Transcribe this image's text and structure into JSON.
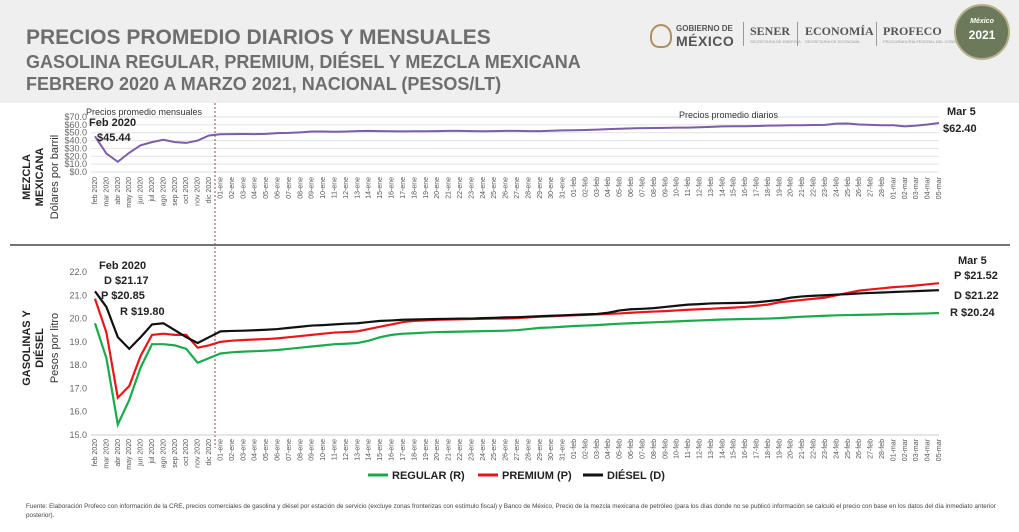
{
  "header": {
    "title_line1": "PRECIOS PROMEDIO DIARIOS Y MENSUALES",
    "title_line2": "GASOLINA REGULAR, PREMIUM, DIÉSEL Y MEZCLA MEXICANA",
    "title_line3": "FEBRERO 2020 A MARZO 2021, NACIONAL (PESOS/LT)"
  },
  "logos": {
    "gobierno_small": "GOBIERNO DE",
    "gobierno_big": "MÉXICO",
    "sener": "SENER",
    "sener_sub": "SECRETARÍA DE ENERGÍA",
    "economia": "ECONOMÍA",
    "economia_sub": "SECRETARÍA DE ECONOMÍA",
    "profeco": "PROFECO",
    "profeco_sub": "PROCURADURÍA FEDERAL DEL CONSUMIDOR",
    "badge_text": "México",
    "badge_year": "2021"
  },
  "x_labels": [
    "feb 2020",
    "mar 2020",
    "abr 2020",
    "may 2020",
    "jun 2020",
    "jul 2020",
    "ago 2020",
    "sep 2020",
    "oct 2020",
    "nov 2020",
    "dic 2020",
    "01-ene",
    "02-ene",
    "03-ene",
    "04-ene",
    "05-ene",
    "06-ene",
    "07-ene",
    "08-ene",
    "09-ene",
    "10-ene",
    "11-ene",
    "12-ene",
    "13-ene",
    "14-ene",
    "15-ene",
    "16-ene",
    "17-ene",
    "18-ene",
    "19-ene",
    "20-ene",
    "21-ene",
    "22-ene",
    "23-ene",
    "24-ene",
    "25-ene",
    "26-ene",
    "27-ene",
    "28-ene",
    "29-ene",
    "30-ene",
    "31-ene",
    "01-feb",
    "02-feb",
    "03-feb",
    "04-feb",
    "05-feb",
    "06-feb",
    "07-feb",
    "08-feb",
    "09-feb",
    "10-feb",
    "11-feb",
    "12-feb",
    "13-feb",
    "14-feb",
    "15-feb",
    "16-feb",
    "17-feb",
    "18-feb",
    "19-feb",
    "20-feb",
    "21-feb",
    "22-feb",
    "23-feb",
    "24-feb",
    "25-feb",
    "26-feb",
    "27-feb",
    "28-feb",
    "01-mar",
    "02-mar",
    "03-mar",
    "04-mar",
    "05-mar"
  ],
  "chart_data": [
    {
      "type": "line",
      "row_label": "MEZCLA MEXICANA",
      "ylabel": "Dólares por barril",
      "ylim": [
        0,
        70
      ],
      "yticks": [
        "$0.0",
        "$10.0",
        "$20.0",
        "$30.0",
        "$40.0",
        "$50.0",
        "$60.0",
        "$70.0"
      ],
      "grid": true,
      "region_left_label": "Precios promedio mensuales",
      "region_right_label": "Precios promedio diarios",
      "series": [
        {
          "color": "#7b5ea7",
          "values": [
            45.44,
            23.5,
            13.0,
            24.5,
            34.0,
            38.0,
            41.0,
            38.0,
            37.0,
            40.0,
            46.5,
            48.0,
            48.2,
            48.3,
            48.2,
            48.5,
            49.5,
            49.8,
            50.5,
            51.5,
            51.5,
            51.2,
            51.5,
            52.0,
            52.3,
            52.0,
            51.8,
            51.7,
            51.8,
            51.9,
            52.1,
            52.3,
            52.4,
            52.0,
            51.8,
            52.0,
            52.4,
            52.3,
            52.0,
            52.0,
            52.5,
            53.0,
            53.2,
            53.5,
            54.0,
            54.5,
            55.0,
            55.5,
            55.8,
            56.0,
            56.2,
            56.5,
            56.5,
            57.0,
            57.5,
            58.0,
            58.2,
            58.3,
            58.5,
            59.0,
            59.2,
            59.5,
            59.5,
            59.8,
            60.0,
            61.5,
            61.8,
            60.5,
            60.0,
            59.5,
            59.5,
            58.0,
            59.0,
            60.5,
            62.4
          ]
        }
      ],
      "annotations": [
        {
          "label": "Feb 2020",
          "value": "$45.44"
        },
        {
          "label": "Mar 5",
          "value": "$62.40"
        }
      ]
    },
    {
      "type": "line",
      "row_label": "GASOLINAS Y DIÉSEL",
      "ylabel": "Pesos por litro",
      "ylim": [
        15,
        22
      ],
      "yticks": [
        "15.0",
        "16.0",
        "17.0",
        "18.0",
        "19.0",
        "20.0",
        "21.0",
        "22.0"
      ],
      "grid": false,
      "series": [
        {
          "name": "REGULAR (R)",
          "color": "#1aaa4a",
          "values": [
            19.8,
            18.3,
            15.45,
            16.5,
            17.9,
            18.9,
            18.9,
            18.85,
            18.7,
            18.1,
            18.3,
            18.5,
            18.55,
            18.58,
            18.6,
            18.62,
            18.65,
            18.7,
            18.75,
            18.8,
            18.85,
            18.9,
            18.92,
            18.95,
            19.05,
            19.2,
            19.3,
            19.35,
            19.37,
            19.4,
            19.42,
            19.43,
            19.44,
            19.45,
            19.46,
            19.47,
            19.48,
            19.5,
            19.55,
            19.6,
            19.62,
            19.65,
            19.68,
            19.7,
            19.72,
            19.75,
            19.78,
            19.8,
            19.82,
            19.84,
            19.86,
            19.88,
            19.9,
            19.92,
            19.94,
            19.96,
            19.97,
            19.98,
            19.99,
            20.0,
            20.02,
            20.05,
            20.08,
            20.1,
            20.12,
            20.14,
            20.15,
            20.16,
            20.17,
            20.18,
            20.2,
            20.2,
            20.21,
            20.22,
            20.24
          ]
        },
        {
          "name": "PREMIUM (P)",
          "color": "#e8161b",
          "values": [
            20.85,
            19.4,
            16.6,
            17.1,
            18.4,
            19.3,
            19.35,
            19.3,
            19.3,
            18.75,
            18.85,
            19.0,
            19.05,
            19.08,
            19.1,
            19.12,
            19.15,
            19.2,
            19.25,
            19.3,
            19.35,
            19.4,
            19.42,
            19.45,
            19.55,
            19.65,
            19.75,
            19.85,
            19.9,
            19.92,
            19.95,
            19.96,
            19.97,
            19.98,
            19.99,
            20.0,
            20.0,
            20.02,
            20.05,
            20.08,
            20.1,
            20.12,
            20.14,
            20.16,
            20.18,
            20.2,
            20.22,
            20.25,
            20.28,
            20.3,
            20.32,
            20.35,
            20.38,
            20.4,
            20.42,
            20.45,
            20.47,
            20.5,
            20.55,
            20.6,
            20.7,
            20.75,
            20.8,
            20.85,
            20.9,
            21.0,
            21.1,
            21.2,
            21.25,
            21.3,
            21.35,
            21.38,
            21.42,
            21.47,
            21.52
          ]
        },
        {
          "name": "DIÉSEL (D)",
          "color": "#111111",
          "values": [
            21.17,
            20.5,
            19.2,
            18.7,
            19.2,
            19.75,
            19.8,
            19.5,
            19.2,
            18.95,
            19.2,
            19.45,
            19.47,
            19.48,
            19.5,
            19.52,
            19.55,
            19.6,
            19.65,
            19.7,
            19.72,
            19.75,
            19.78,
            19.8,
            19.85,
            19.9,
            19.92,
            19.95,
            19.96,
            19.97,
            19.98,
            19.99,
            20.0,
            20.0,
            20.02,
            20.03,
            20.05,
            20.06,
            20.08,
            20.1,
            20.12,
            20.14,
            20.16,
            20.18,
            20.2,
            20.25,
            20.35,
            20.4,
            20.42,
            20.45,
            20.5,
            20.55,
            20.6,
            20.62,
            20.65,
            20.66,
            20.67,
            20.68,
            20.7,
            20.75,
            20.8,
            20.9,
            20.95,
            20.98,
            21.0,
            21.03,
            21.05,
            21.08,
            21.1,
            21.12,
            21.14,
            21.16,
            21.18,
            21.2,
            21.22
          ]
        }
      ],
      "annotations": [
        {
          "label": "Feb 2020",
          "values": [
            "D $21.17",
            "P $20.85",
            "R $19.80"
          ]
        },
        {
          "label": "Mar 5",
          "values": [
            "P $21.52",
            "D $21.22",
            "R $20.24"
          ]
        }
      ]
    }
  ],
  "footer": "Fuente: Elaboración Profeco con información de la CRE, precios comerciales de gasolina y diésel por estación de servicio (excluye zonas fronterizas con estímulo fiscal) y Banco de México, Precio de la mezcla mexicana de petróleo (para los días donde no se publicó información se calculó el precio con base en los datos del día inmediato anterior posterior)."
}
